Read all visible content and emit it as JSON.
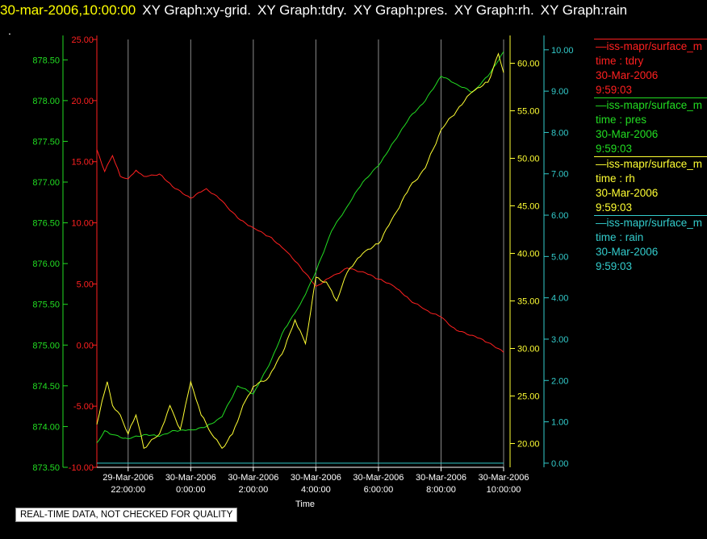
{
  "header": {
    "timestamp": "30-mar-2006,10:00:00",
    "graphs": [
      "XY Graph:xy-grid.",
      "XY Graph:tdry.",
      "XY Graph:pres.",
      "XY Graph:rh.",
      "XY Graph:rain"
    ],
    "dot": "."
  },
  "note": "REAL-TIME DATA, NOT CHECKED FOR QUALITY",
  "legend": [
    {
      "series": "tdry",
      "color": "#ff2020",
      "lines": [
        "—iss-mapr/surface_m",
        "time : tdry",
        "30-Mar-2006",
        "9:59:03"
      ]
    },
    {
      "series": "pres",
      "color": "#22dd22",
      "lines": [
        "—iss-mapr/surface_m",
        "time : pres",
        "30-Mar-2006",
        "9:59:03"
      ]
    },
    {
      "series": "rh",
      "color": "#ffff33",
      "lines": [
        "—iss-mapr/surface_m",
        "time : rh",
        "30-Mar-2006",
        "9:59:03"
      ]
    },
    {
      "series": "rain",
      "color": "#33cccc",
      "lines": [
        "—iss-mapr/surface_m",
        "time : rain",
        "30-Mar-2006",
        "9:59:03"
      ]
    }
  ],
  "chart_data": {
    "type": "line",
    "xlabel": "Time",
    "x_range": [
      "29-Mar-2006 21:00",
      "30-Mar-2006 10:00"
    ],
    "x_ticks": [
      {
        "time": "29-Mar-2006 22:00",
        "date": "29-Mar-2006",
        "clock": "22:00:00"
      },
      {
        "time": "30-Mar-2006 00:00",
        "date": "30-Mar-2006",
        "clock": "0:00:00"
      },
      {
        "time": "30-Mar-2006 02:00",
        "date": "30-Mar-2006",
        "clock": "2:00:00"
      },
      {
        "time": "30-Mar-2006 04:00",
        "date": "30-Mar-2006",
        "clock": "4:00:00"
      },
      {
        "time": "30-Mar-2006 06:00",
        "date": "30-Mar-2006",
        "clock": "6:00:00"
      },
      {
        "time": "30-Mar-2006 08:00",
        "date": "30-Mar-2006",
        "clock": "8:00:00"
      },
      {
        "time": "30-Mar-2006 10:00",
        "date": "30-Mar-2006",
        "clock": "10:00:00"
      }
    ],
    "grid": "vertical",
    "axes": {
      "tdry": {
        "color": "#ff2020",
        "range": [
          -10,
          25
        ],
        "ticks": [
          "-10.00",
          "-5.00",
          "0.00",
          "5.00",
          "10.00",
          "15.00",
          "20.00",
          "25.00"
        ]
      },
      "pres": {
        "color": "#22dd22",
        "range": [
          873.5,
          878.75
        ],
        "ticks": [
          "873.50",
          "874.00",
          "874.50",
          "875.00",
          "875.50",
          "876.00",
          "876.50",
          "877.00",
          "877.50",
          "878.00",
          "878.50"
        ]
      },
      "rh": {
        "color": "#ffff33",
        "range": [
          17.5,
          62.5
        ],
        "ticks": [
          "20.00",
          "25.00",
          "30.00",
          "35.00",
          "40.00",
          "45.00",
          "50.00",
          "55.00",
          "60.00"
        ]
      },
      "rain": {
        "color": "#33cccc",
        "range": [
          -0.1,
          10.25
        ],
        "ticks": [
          "0.00",
          "1.00",
          "2.00",
          "3.00",
          "4.00",
          "5.00",
          "6.00",
          "7.00",
          "8.00",
          "9.00",
          "10.00"
        ]
      }
    },
    "series": [
      {
        "name": "tdry",
        "points": [
          [
            "29-Mar-2006 21:00",
            16.0
          ],
          [
            "29-Mar-2006 21:15",
            14.2
          ],
          [
            "29-Mar-2006 21:30",
            15.5
          ],
          [
            "29-Mar-2006 21:45",
            13.8
          ],
          [
            "29-Mar-2006 22:00",
            13.6
          ],
          [
            "29-Mar-2006 22:15",
            14.3
          ],
          [
            "29-Mar-2006 22:30",
            13.8
          ],
          [
            "29-Mar-2006 23:00",
            14.0
          ],
          [
            "29-Mar-2006 23:30",
            12.8
          ],
          [
            "30-Mar-2006 00:00",
            12.0
          ],
          [
            "30-Mar-2006 00:30",
            12.8
          ],
          [
            "30-Mar-2006 01:00",
            11.8
          ],
          [
            "30-Mar-2006 01:30",
            10.4
          ],
          [
            "30-Mar-2006 02:00",
            9.6
          ],
          [
            "30-Mar-2006 02:30",
            8.9
          ],
          [
            "30-Mar-2006 03:00",
            7.8
          ],
          [
            "30-Mar-2006 03:30",
            6.4
          ],
          [
            "30-Mar-2006 04:00",
            4.8
          ],
          [
            "30-Mar-2006 04:30",
            5.6
          ],
          [
            "30-Mar-2006 05:00",
            6.3
          ],
          [
            "30-Mar-2006 05:30",
            6.0
          ],
          [
            "30-Mar-2006 06:00",
            5.4
          ],
          [
            "30-Mar-2006 06:30",
            4.8
          ],
          [
            "30-Mar-2006 07:00",
            3.7
          ],
          [
            "30-Mar-2006 07:30",
            2.9
          ],
          [
            "30-Mar-2006 08:00",
            2.3
          ],
          [
            "30-Mar-2006 08:30",
            1.2
          ],
          [
            "30-Mar-2006 09:00",
            0.8
          ],
          [
            "30-Mar-2006 09:30",
            0.2
          ],
          [
            "30-Mar-2006 10:00",
            -0.6
          ]
        ]
      },
      {
        "name": "pres",
        "points": [
          [
            "29-Mar-2006 21:00",
            873.8
          ],
          [
            "29-Mar-2006 21:15",
            873.95
          ],
          [
            "29-Mar-2006 21:30",
            873.9
          ],
          [
            "29-Mar-2006 22:00",
            873.85
          ],
          [
            "29-Mar-2006 22:30",
            873.9
          ],
          [
            "29-Mar-2006 23:00",
            873.88
          ],
          [
            "29-Mar-2006 23:30",
            873.95
          ],
          [
            "30-Mar-2006 00:00",
            873.96
          ],
          [
            "30-Mar-2006 00:30",
            874.0
          ],
          [
            "30-Mar-2006 01:00",
            874.12
          ],
          [
            "30-Mar-2006 01:30",
            874.5
          ],
          [
            "30-Mar-2006 02:00",
            874.4
          ],
          [
            "30-Mar-2006 02:30",
            874.75
          ],
          [
            "30-Mar-2006 03:00",
            875.2
          ],
          [
            "30-Mar-2006 03:30",
            875.5
          ],
          [
            "30-Mar-2006 04:00",
            875.9
          ],
          [
            "30-Mar-2006 04:30",
            876.4
          ],
          [
            "30-Mar-2006 05:00",
            876.7
          ],
          [
            "30-Mar-2006 05:30",
            877.0
          ],
          [
            "30-Mar-2006 06:00",
            877.2
          ],
          [
            "30-Mar-2006 06:30",
            877.5
          ],
          [
            "30-Mar-2006 07:00",
            877.8
          ],
          [
            "30-Mar-2006 07:30",
            878.0
          ],
          [
            "30-Mar-2006 08:00",
            878.3
          ],
          [
            "30-Mar-2006 08:30",
            878.2
          ],
          [
            "30-Mar-2006 09:00",
            878.1
          ],
          [
            "30-Mar-2006 09:30",
            878.3
          ],
          [
            "30-Mar-2006 10:00",
            878.6
          ]
        ]
      },
      {
        "name": "rh",
        "points": [
          [
            "29-Mar-2006 21:00",
            22.0
          ],
          [
            "29-Mar-2006 21:10",
            24.5
          ],
          [
            "29-Mar-2006 21:20",
            26.5
          ],
          [
            "29-Mar-2006 21:30",
            24.0
          ],
          [
            "29-Mar-2006 21:45",
            23.0
          ],
          [
            "29-Mar-2006 22:00",
            21.0
          ],
          [
            "29-Mar-2006 22:15",
            23.0
          ],
          [
            "29-Mar-2006 22:30",
            19.5
          ],
          [
            "29-Mar-2006 23:00",
            21.0
          ],
          [
            "29-Mar-2006 23:20",
            24.0
          ],
          [
            "29-Mar-2006 23:40",
            21.5
          ],
          [
            "30-Mar-2006 00:00",
            26.5
          ],
          [
            "30-Mar-2006 00:20",
            23.0
          ],
          [
            "30-Mar-2006 00:40",
            21.0
          ],
          [
            "30-Mar-2006 01:00",
            19.5
          ],
          [
            "30-Mar-2006 01:20",
            21.0
          ],
          [
            "30-Mar-2006 01:40",
            24.0
          ],
          [
            "30-Mar-2006 02:00",
            26.0
          ],
          [
            "30-Mar-2006 02:30",
            27.0
          ],
          [
            "30-Mar-2006 03:00",
            30.0
          ],
          [
            "30-Mar-2006 03:20",
            33.0
          ],
          [
            "30-Mar-2006 03:40",
            30.5
          ],
          [
            "30-Mar-2006 04:00",
            37.5
          ],
          [
            "30-Mar-2006 04:20",
            37.0
          ],
          [
            "30-Mar-2006 04:40",
            35.0
          ],
          [
            "30-Mar-2006 05:00",
            38.0
          ],
          [
            "30-Mar-2006 05:30",
            40.0
          ],
          [
            "30-Mar-2006 06:00",
            41.0
          ],
          [
            "30-Mar-2006 06:30",
            44.0
          ],
          [
            "30-Mar-2006 07:00",
            47.0
          ],
          [
            "30-Mar-2006 07:30",
            49.0
          ],
          [
            "30-Mar-2006 08:00",
            53.0
          ],
          [
            "30-Mar-2006 08:30",
            55.0
          ],
          [
            "30-Mar-2006 09:00",
            57.0
          ],
          [
            "30-Mar-2006 09:30",
            58.0
          ],
          [
            "30-Mar-2006 09:50",
            61.0
          ],
          [
            "30-Mar-2006 10:00",
            59.0
          ]
        ]
      },
      {
        "name": "rain",
        "points": [
          [
            "29-Mar-2006 21:00",
            0.0
          ],
          [
            "30-Mar-2006 10:00",
            0.0
          ]
        ]
      }
    ]
  }
}
